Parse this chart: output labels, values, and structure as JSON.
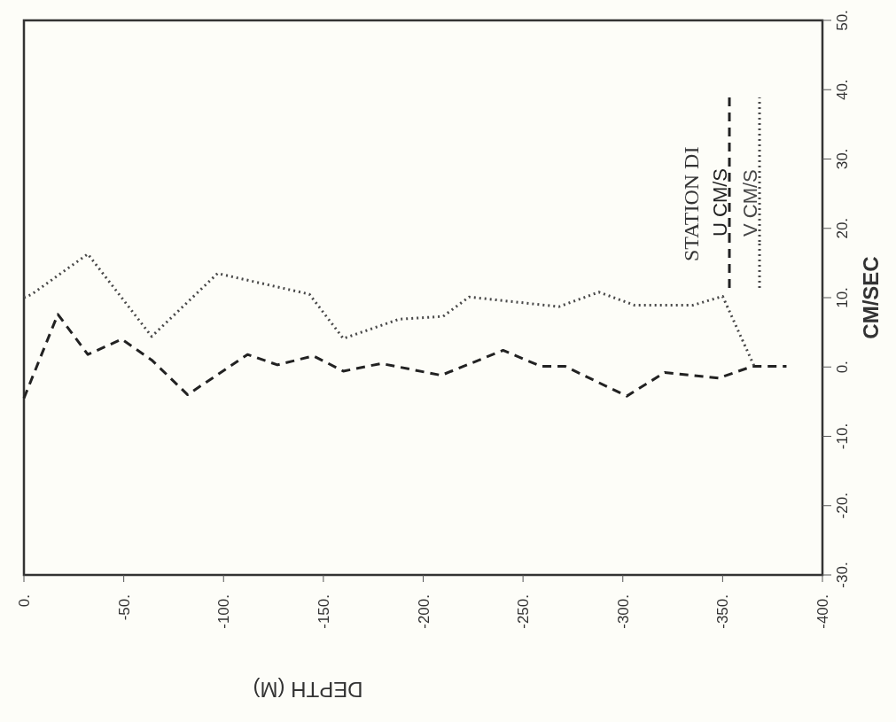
{
  "chart_data": {
    "type": "line",
    "xlabel": "DEPTH (M)",
    "ylabel": "CM/SEC",
    "legend_title": "STATION DI",
    "x": [
      0,
      -17,
      -32,
      -49,
      -64,
      -82,
      -112,
      -127,
      -145,
      -160,
      -179,
      -209,
      -240,
      -259,
      -271,
      -302,
      -321,
      -348,
      -365,
      -382
    ],
    "series": [
      {
        "name": "U CM/S",
        "color": "#222222",
        "line_style": "dashed",
        "values": [
          -4.5,
          7.6,
          1.8,
          4.0,
          1.0,
          -4.0,
          1.8,
          0.3,
          1.6,
          -0.6,
          0.5,
          -1.2,
          2.4,
          0.1,
          0.1,
          -4.2,
          -0.8,
          -1.6,
          0.1,
          0.1
        ]
      },
      {
        "name": "V CM/S",
        "color": "#484848",
        "line_style": "dotted",
        "x": [
          0,
          -4,
          -32,
          -64,
          -97,
          -143,
          -160,
          -188,
          -210,
          -223,
          -268,
          -288,
          -306,
          -335,
          -350,
          -366
        ],
        "values": [
          10,
          10.5,
          16.3,
          4.4,
          13.5,
          10.5,
          4.1,
          6.9,
          7.3,
          10.1,
          8.7,
          10.8,
          8.9,
          8.9,
          10.2,
          0
        ]
      }
    ],
    "xlim": [
      0,
      -400
    ],
    "ylim": [
      -30,
      50
    ],
    "xticks": [
      {
        "value": 0,
        "label": "0."
      },
      {
        "value": -50,
        "label": "-50."
      },
      {
        "value": -100,
        "label": "-100."
      },
      {
        "value": -150,
        "label": "-150."
      },
      {
        "value": -200,
        "label": "-200."
      },
      {
        "value": -250,
        "label": "-250."
      },
      {
        "value": -300,
        "label": "-300."
      },
      {
        "value": -350,
        "label": "-350."
      },
      {
        "value": -400,
        "label": "-400."
      }
    ],
    "yticks": [
      {
        "value": -30,
        "label": "-30."
      },
      {
        "value": -20,
        "label": "-20."
      },
      {
        "value": -10,
        "label": "-10."
      },
      {
        "value": 0,
        "label": "0."
      },
      {
        "value": 10,
        "label": "10."
      },
      {
        "value": 20,
        "label": "20."
      },
      {
        "value": 30,
        "label": "30."
      },
      {
        "value": 40,
        "label": "40."
      },
      {
        "value": 50,
        "label": "50."
      }
    ],
    "grid": false,
    "legend": "top right",
    "marker": "none"
  }
}
